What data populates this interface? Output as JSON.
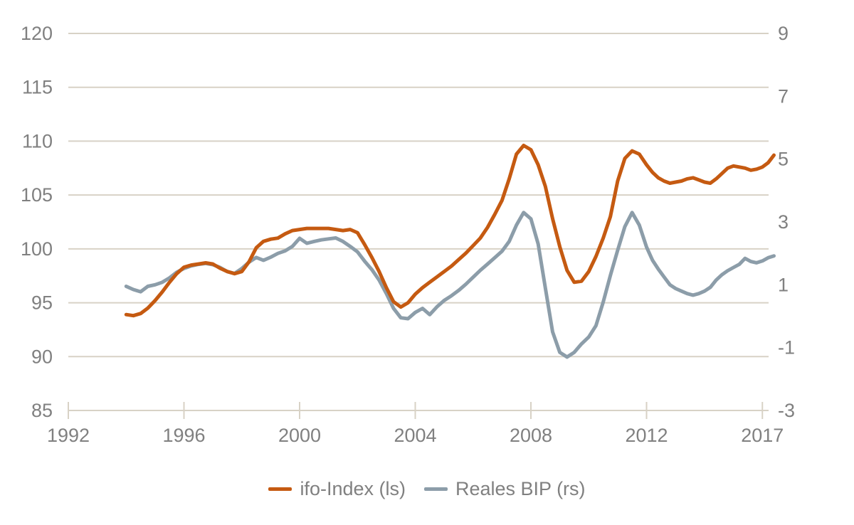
{
  "chart_data": {
    "type": "line",
    "title": "",
    "grid": true,
    "legend_position": "bottom",
    "x_axis": {
      "tick_labels": [
        "1992",
        "1996",
        "2000",
        "2004",
        "2008",
        "2012",
        "2017"
      ],
      "tick_years": [
        1992,
        1996,
        2000,
        2004,
        2008,
        2012,
        2017
      ]
    },
    "left_axis": {
      "ticks": [
        120,
        115,
        110,
        105,
        100,
        95,
        90,
        85
      ],
      "range": [
        85,
        120
      ]
    },
    "right_axis": {
      "ticks": [
        9,
        7,
        5,
        3,
        1,
        -1,
        -3
      ],
      "range": [
        -3,
        9
      ]
    },
    "colors": {
      "grid": "#D8D2C6",
      "axis_labels": "#808080",
      "ifo": "#C55A11",
      "bip": "#8C9DA9"
    },
    "x": [
      1994,
      1994.25,
      1994.5,
      1994.75,
      1995,
      1995.25,
      1995.5,
      1995.75,
      1996,
      1996.25,
      1996.5,
      1996.75,
      1997,
      1997.25,
      1997.5,
      1997.75,
      1998,
      1998.25,
      1998.5,
      1998.75,
      1999,
      1999.25,
      1999.5,
      1999.75,
      2000,
      2000.25,
      2000.5,
      2000.75,
      2001,
      2001.25,
      2001.5,
      2001.75,
      2002,
      2002.25,
      2002.5,
      2002.75,
      2003,
      2003.25,
      2003.5,
      2003.75,
      2004,
      2004.25,
      2004.5,
      2004.75,
      2005,
      2005.25,
      2005.5,
      2005.75,
      2006,
      2006.25,
      2006.5,
      2006.75,
      2007,
      2007.25,
      2007.5,
      2007.75,
      2008,
      2008.25,
      2008.5,
      2008.75,
      2009,
      2009.25,
      2009.5,
      2009.75,
      2010,
      2010.25,
      2010.5,
      2010.75,
      2011,
      2011.25,
      2011.5,
      2011.75,
      2012,
      2012.25,
      2012.5,
      2012.75,
      2013,
      2013.25,
      2013.5,
      2013.75,
      2014,
      2014.25,
      2014.5,
      2014.75,
      2015,
      2015.25,
      2015.5,
      2015.75,
      2016,
      2016.25,
      2016.5,
      2016.75,
      2017,
      2017.25,
      2017.5
    ],
    "series": [
      {
        "name": "ifo-Index (ls)",
        "axis": "left",
        "color": "#C55A11",
        "values": [
          93.9,
          93.8,
          94,
          94.5,
          95.2,
          96,
          96.9,
          97.7,
          98.3,
          98.5,
          98.6,
          98.7,
          98.6,
          98.2,
          97.9,
          97.7,
          97.9,
          98.8,
          100.1,
          100.7,
          100.9,
          101,
          101.4,
          101.7,
          101.8,
          101.9,
          101.9,
          101.9,
          101.9,
          101.8,
          101.7,
          101.8,
          101.5,
          100.4,
          99.2,
          97.9,
          96.4,
          95.1,
          94.6,
          95,
          95.8,
          96.4,
          96.9,
          97.4,
          97.9,
          98.4,
          99,
          99.6,
          100.3,
          101,
          102,
          103.2,
          104.5,
          106.5,
          108.8,
          109.6,
          109.2,
          107.8,
          105.8,
          102.8,
          100.2,
          98,
          96.9,
          97,
          97.9,
          99.3,
          101,
          103,
          106.3,
          108.4,
          109.1,
          108.8,
          107.8,
          107.1,
          106.6,
          106.3,
          106.1,
          106.2,
          106.3,
          106.5,
          106.6,
          106.4,
          106.2,
          106.1,
          106.5,
          107,
          107.5,
          107.7,
          107.6,
          107.5,
          107.3,
          107.4,
          107.6,
          108,
          108.7
        ]
      },
      {
        "name": "Reales BIP (rs)",
        "axis": "right",
        "color": "#8C9DA9",
        "values": [
          0.95,
          0.85,
          0.78,
          0.95,
          1,
          1.08,
          1.22,
          1.4,
          1.52,
          1.6,
          1.65,
          1.68,
          1.64,
          1.55,
          1.42,
          1.36,
          1.52,
          1.72,
          1.87,
          1.78,
          1.88,
          2,
          2.08,
          2.22,
          2.48,
          2.32,
          2.38,
          2.43,
          2.46,
          2.49,
          2.38,
          2.22,
          2.05,
          1.75,
          1.48,
          1.15,
          0.72,
          0.25,
          -0.05,
          -0.08,
          0.12,
          0.25,
          0.05,
          0.3,
          0.5,
          0.65,
          0.82,
          1.02,
          1.24,
          1.46,
          1.66,
          1.86,
          2.07,
          2.38,
          2.9,
          3.3,
          3.1,
          2.3,
          0.9,
          -0.5,
          -1.15,
          -1.3,
          -1.15,
          -0.88,
          -0.66,
          -0.3,
          0.45,
          1.3,
          2.1,
          2.85,
          3.3,
          2.9,
          2.2,
          1.78,
          1.5,
          1.25,
          1,
          0.88,
          0.8,
          0.72,
          0.67,
          0.72,
          0.8,
          0.92,
          1.15,
          1.32,
          1.45,
          1.55,
          1.65,
          1.84,
          1.74,
          1.7,
          1.76,
          1.86,
          1.92
        ]
      }
    ]
  }
}
